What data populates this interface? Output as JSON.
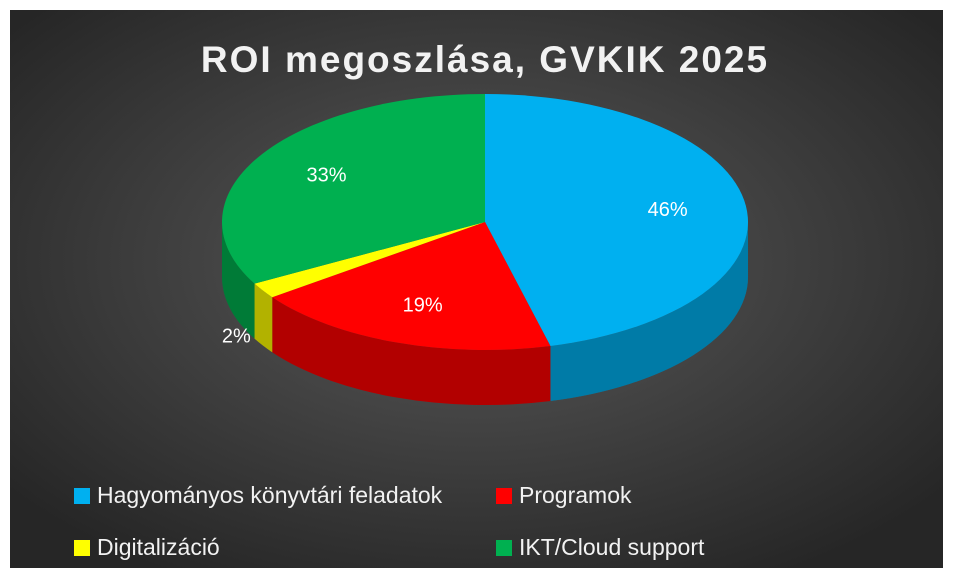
{
  "chart_data": {
    "type": "pie3d",
    "title": "ROI megoszlása, GVKIK 2025",
    "categories": [
      "Hagyományos könyvtári feladatok",
      "Programok",
      "Digitalizáció",
      "IKT/Cloud support"
    ],
    "values": [
      46,
      19,
      2,
      33
    ],
    "value_labels": [
      "46%",
      "19%",
      "2%",
      "33%"
    ],
    "colors": [
      "#00b0f0",
      "#ff0000",
      "#ffff00",
      "#00b050"
    ],
    "legend": "bottom"
  }
}
